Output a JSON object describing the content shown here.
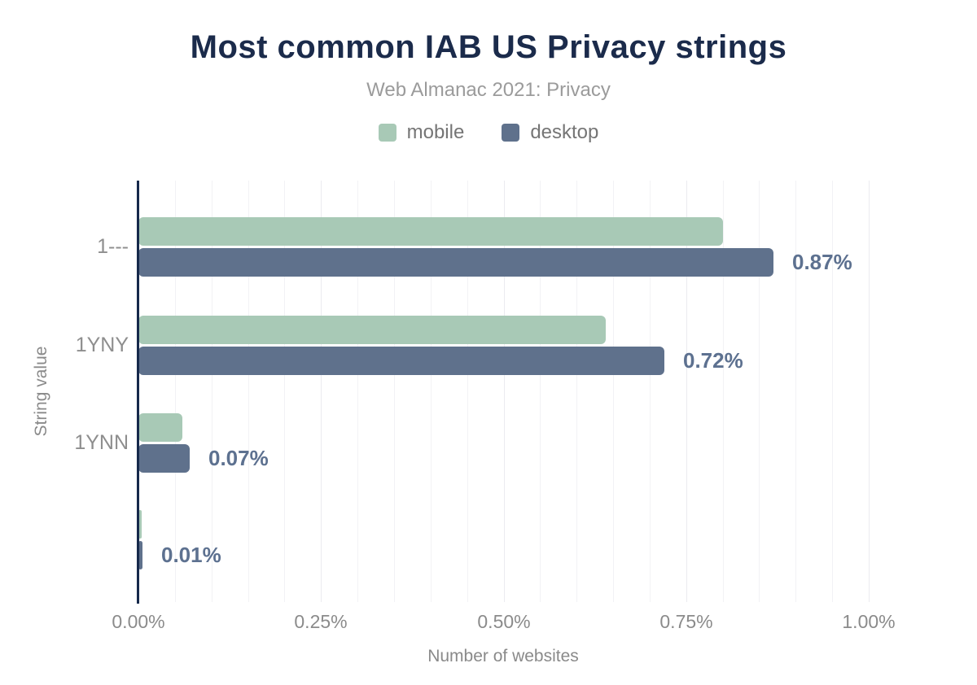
{
  "page": {
    "title": "Most common IAB US Privacy strings",
    "subtitle": "Web Almanac 2021: Privacy"
  },
  "legend": {
    "items": [
      {
        "label": "mobile",
        "color": "#a8c9b6"
      },
      {
        "label": "desktop",
        "color": "#5f718c"
      }
    ]
  },
  "axes": {
    "x_title": "Number of websites",
    "y_title": "String value"
  },
  "chart_data": {
    "type": "bar",
    "orientation": "horizontal",
    "title": "Most common IAB US Privacy strings",
    "subtitle": "Web Almanac 2021: Privacy",
    "xlabel": "Number of websites",
    "ylabel": "String value",
    "categories": [
      "1---",
      "1YNY",
      "1YNN",
      ""
    ],
    "series": [
      {
        "name": "mobile",
        "color": "#a8c9b6",
        "values": [
          0.8,
          0.64,
          0.06,
          0.005
        ]
      },
      {
        "name": "desktop",
        "color": "#5f718c",
        "values": [
          0.87,
          0.72,
          0.07,
          0.006
        ],
        "data_labels": [
          "0.87%",
          "0.72%",
          "0.07%",
          "0.01%"
        ]
      }
    ],
    "xlim": [
      0,
      1.045
    ],
    "xtick_labels": [
      "0.00%",
      "0.25%",
      "0.50%",
      "0.75%",
      "1.00%"
    ],
    "xtick_values": [
      0,
      0.25,
      0.5,
      0.75,
      1.0
    ],
    "minor_grid_step": 0.05,
    "grid": "vertical",
    "legend_position": "top",
    "value_label_color": "#5d7190",
    "axis_line_color": "#16294b",
    "gridline_color": "#f2f2f5"
  }
}
